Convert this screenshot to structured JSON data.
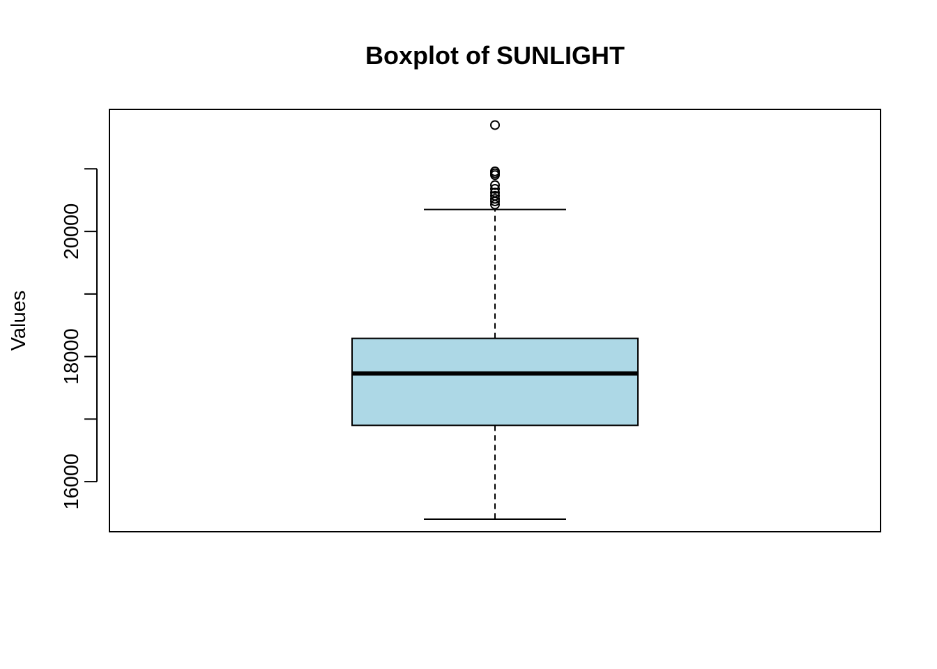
{
  "chart_data": {
    "type": "box",
    "title": "Boxplot of SUNLIGHT",
    "xlabel": "",
    "ylabel": "Values",
    "ylim": [
      15200,
      21950
    ],
    "yticks": [
      16000,
      17000,
      18000,
      19000,
      20000,
      21000
    ],
    "ytick_labels": [
      "16000",
      "",
      "18000",
      "",
      "20000",
      ""
    ],
    "series": [
      {
        "whisker_low": 15400,
        "q1": 16900,
        "median": 17730,
        "q3": 18290,
        "whisker_high": 20350,
        "outliers": [
          21700,
          20960,
          20930,
          20900,
          20740,
          20680,
          20620,
          20570,
          20520,
          20480,
          20430
        ]
      }
    ],
    "colors": {
      "box_fill": "#ADD8E6",
      "stroke": "#000000"
    },
    "grid": false,
    "legend": "none"
  }
}
